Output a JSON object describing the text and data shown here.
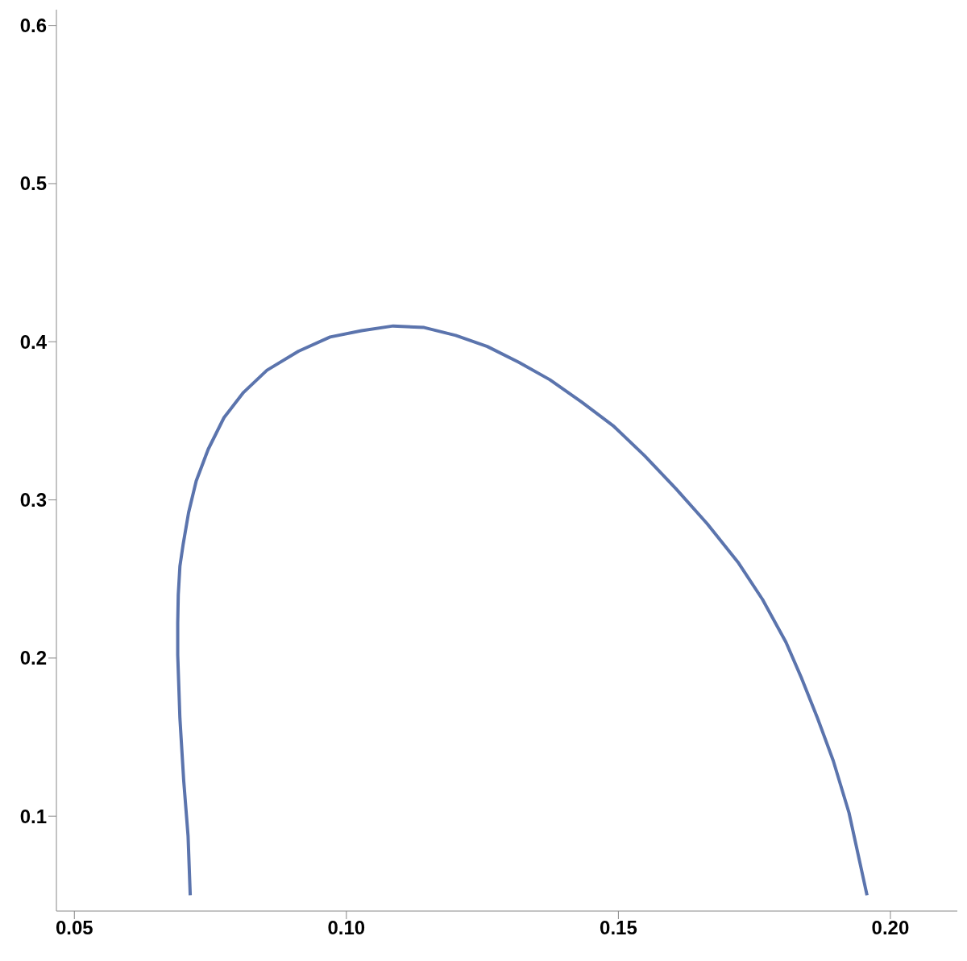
{
  "chart_data": {
    "type": "line",
    "x": [
      0.0713,
      0.0709,
      0.0701,
      0.0694,
      0.069,
      0.069,
      0.0691,
      0.0694,
      0.07,
      0.071,
      0.0724,
      0.0746,
      0.0775,
      0.0811,
      0.0854,
      0.0912,
      0.097,
      0.1028,
      0.1086,
      0.1143,
      0.1201,
      0.1259,
      0.1317,
      0.1374,
      0.1432,
      0.149,
      0.1548,
      0.1606,
      0.1663,
      0.1721,
      0.1765,
      0.1808,
      0.1837,
      0.1866,
      0.1895,
      0.1924,
      0.1957
    ],
    "series": [
      {
        "color": "#5b74ad",
        "values": [
          0.05,
          0.0875,
          0.1225,
          0.162,
          0.202,
          0.222,
          0.24,
          0.258,
          0.272,
          0.292,
          0.312,
          0.332,
          0.352,
          0.368,
          0.382,
          0.394,
          0.403,
          0.407,
          0.41,
          0.409,
          0.404,
          0.397,
          0.387,
          0.376,
          0.362,
          0.347,
          0.328,
          0.307,
          0.285,
          0.26,
          0.237,
          0.21,
          0.187,
          0.162,
          0.135,
          0.102,
          0.05
        ]
      }
    ],
    "xlim": [
      0.0467,
      0.2123
    ],
    "xticks": [
      {
        "value": 0.05,
        "label": "0.05"
      },
      {
        "value": 0.1,
        "label": "0.10"
      },
      {
        "value": 0.15,
        "label": "0.15"
      },
      {
        "value": 0.2,
        "label": "0.20"
      }
    ],
    "ylim": [
      0.04,
      0.61
    ],
    "yticks": [
      0.1,
      0.2,
      0.3,
      0.4,
      0.5,
      0.6
    ],
    "grid": false,
    "legend": false,
    "marker": "none",
    "line_style": "solid"
  }
}
